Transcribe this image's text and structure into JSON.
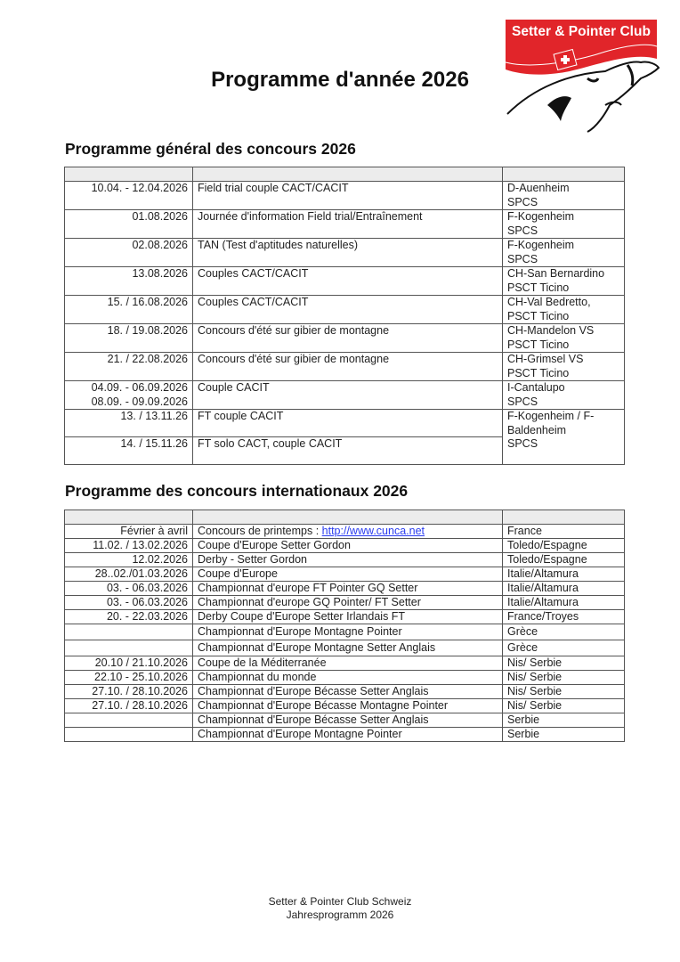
{
  "title": "Programme d'année 2026",
  "logo": {
    "text": "Setter & Pointer Club",
    "brand_color": "#e1252a"
  },
  "section1": {
    "heading": "Programme général des concours 2026",
    "rows": [
      {
        "date": "10.04. - 12.04.2026",
        "event": "Field trial couple CACT/CACIT",
        "location": "D-Auenheim",
        "organizer": "SPCS"
      },
      {
        "date": "01.08.2026",
        "event": "Journée d'information Field trial/Entraînement",
        "location": "F-Kogenheim",
        "organizer": "SPCS"
      },
      {
        "date": "02.08.2026",
        "event": "TAN (Test d'aptitudes naturelles)",
        "location": "F-Kogenheim",
        "organizer": "SPCS"
      },
      {
        "date": "13.08.2026",
        "event": "Couples CACT/CACIT",
        "location": "CH-San Bernardino",
        "organizer": "PSCT Ticino"
      },
      {
        "date": "15. / 16.08.2026",
        "event": "Couples CACT/CACIT",
        "location": "CH-Val Bedretto,",
        "organizer": "PSCT Ticino"
      },
      {
        "date": "18. / 19.08.2026",
        "event": "Concours d'été sur gibier de montagne",
        "location": "CH-Mandelon VS",
        "organizer": "PSCT Ticino"
      },
      {
        "date": "21. / 22.08.2026",
        "event": "Concours d'été sur gibier de montagne",
        "location": "CH-Grimsel VS",
        "organizer": "PSCT Ticino"
      },
      {
        "date": "04.09. - 06.09.2026",
        "date2": "08.09. - 09.09.2026",
        "event": "Couple CACIT",
        "location": "I-Cantalupo",
        "organizer": "SPCS"
      },
      {
        "date": "13. / 13.11.26",
        "event": "FT couple CACIT",
        "location": "F-Kogenheim / F-Baldenheim",
        "organizer": "SPCS"
      },
      {
        "date": "14. / 15.11.26",
        "event": "FT solo CACT, couple CACIT"
      }
    ]
  },
  "section2": {
    "heading": "Programme des concours internationaux 2026",
    "link": {
      "prefix": "Concours de printemps : ",
      "url_text": "http://www.cunca.net"
    },
    "rows": [
      {
        "date": "Février à avril",
        "event": "",
        "location": "France"
      },
      {
        "date": "11.02. / 13.02.2026",
        "event": "Coupe d'Europe Setter Gordon",
        "location": "Toledo/Espagne"
      },
      {
        "date": "12.02.2026",
        "event": "Derby - Setter Gordon",
        "location": "Toledo/Espagne"
      },
      {
        "date": "28..02./01.03.2026",
        "event": "Coupe d'Europe",
        "location": "Italie/Altamura"
      },
      {
        "date": "03. - 06.03.2026",
        "event": "Championnat d'europe FT Pointer GQ Setter",
        "location": "Italie/Altamura"
      },
      {
        "date": "03. - 06.03.2026",
        "event": "Championnat d'europe GQ Pointer/ FT Setter",
        "location": "Italie/Altamura"
      },
      {
        "date": "20. - 22.03.2026",
        "event": "Derby Coupe d'Europe Setter Irlandais FT",
        "location": "France/Troyes"
      },
      {
        "date": "",
        "event": "Championnat d'Europe Montagne Pointer",
        "location": "Grèce"
      },
      {
        "date": "",
        "event": "Championnat d'Europe Montagne Setter Anglais",
        "location": "Grèce"
      },
      {
        "date": "20.10 / 21.10.2026",
        "event": "Coupe de la Méditerranée",
        "location": "Nis/ Serbie"
      },
      {
        "date": "22.10 - 25.10.2026",
        "event": "Championnat du monde",
        "location": "Nis/ Serbie"
      },
      {
        "date": "27.10. / 28.10.2026",
        "event": "Championnat d'Europe Bécasse Setter Anglais",
        "location": "Nis/ Serbie"
      },
      {
        "date": "27.10. / 28.10.2026",
        "event": "Championnat d'Europe Bécasse Montagne Pointer",
        "location": "Nis/ Serbie"
      },
      {
        "date": "",
        "event": "Championnat d'Europe Bécasse Setter Anglais",
        "location": "Serbie"
      },
      {
        "date": "",
        "event": "Championnat d'Europe Montagne Pointer",
        "location": "Serbie"
      }
    ]
  },
  "footer": {
    "line1": "Setter & Pointer Club Schweiz",
    "line2": "Jahresprogramm 2026"
  }
}
